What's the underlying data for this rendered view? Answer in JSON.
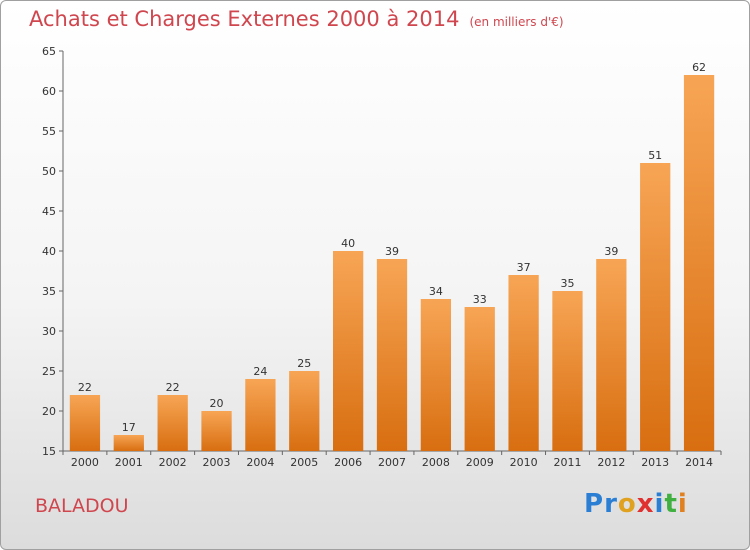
{
  "title": "Achats et Charges Externes 2000 à 2014",
  "unit": "(en milliers d'€)",
  "commune": "BALADOU",
  "logo": {
    "letters": [
      "P",
      "r",
      "o",
      "x",
      "i",
      "t",
      "i"
    ],
    "colors": [
      "#2a7fd4",
      "#2a7fd4",
      "#e0a020",
      "#e03030",
      "#2a7fd4",
      "#40b040",
      "#e08020"
    ]
  },
  "chart_data": {
    "type": "bar",
    "categories": [
      "2000",
      "2001",
      "2002",
      "2003",
      "2004",
      "2005",
      "2006",
      "2007",
      "2008",
      "2009",
      "2010",
      "2011",
      "2012",
      "2013",
      "2014"
    ],
    "values": [
      22,
      17,
      22,
      20,
      24,
      25,
      40,
      39,
      34,
      33,
      37,
      35,
      39,
      51,
      62
    ],
    "ylim": [
      15,
      65
    ],
    "yticks": [
      15,
      20,
      25,
      30,
      35,
      40,
      45,
      50,
      55,
      60,
      65
    ],
    "grid": false,
    "bar_color": "#f0902e"
  }
}
